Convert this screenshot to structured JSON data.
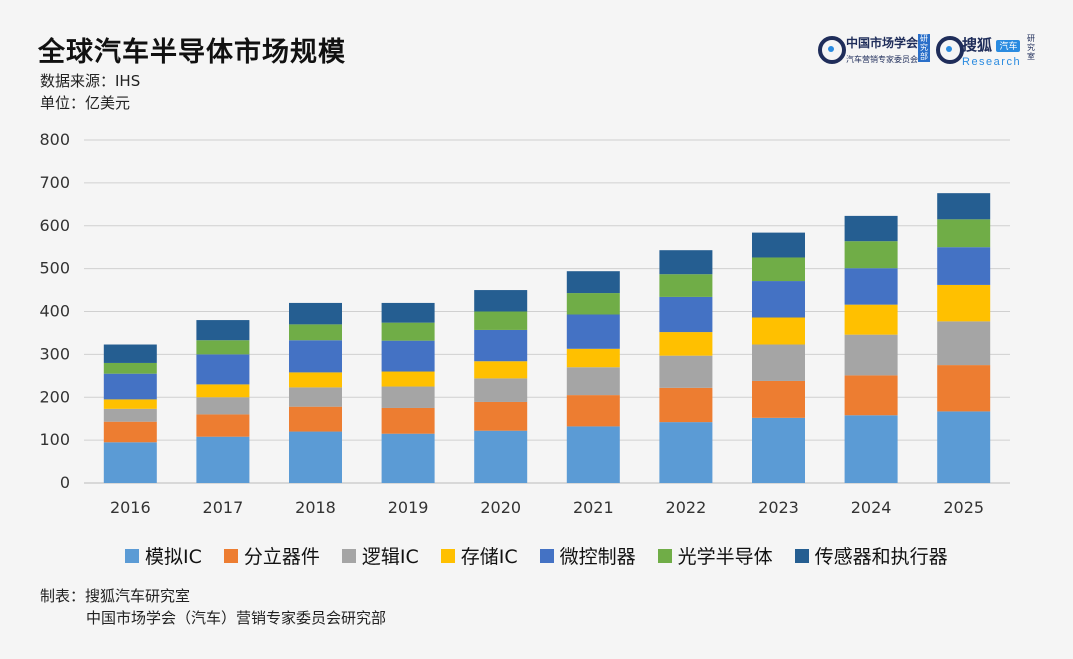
{
  "header": {
    "title": "全球汽车半导体市场规模",
    "source": "数据来源：IHS",
    "unit": "单位：亿美元"
  },
  "logos": {
    "logo1_main": "中国市场学会",
    "logo1_sub": "汽车营销专家委员会",
    "logo1_tag": "研究部",
    "logo2_main": "搜狐",
    "logo2_badge": "汽车",
    "logo2_sub": "Research",
    "logo2_tag": "研究室"
  },
  "footer": {
    "line1": "制表：搜狐汽车研究室",
    "line2": "中国市场学会（汽车）营销专家委员会研究部"
  },
  "chart_data": {
    "type": "bar",
    "stacked": true,
    "categories": [
      "2016",
      "2017",
      "2018",
      "2019",
      "2020",
      "2021",
      "2022",
      "2023",
      "2024",
      "2025"
    ],
    "ylim": [
      0,
      800
    ],
    "yticks": [
      0,
      100,
      200,
      300,
      400,
      500,
      600,
      700,
      800
    ],
    "grid": true,
    "legend_position": "bottom",
    "series": [
      {
        "name": "模拟IC",
        "color": "#5b9bd5",
        "values": [
          95,
          108,
          120,
          115,
          122,
          132,
          142,
          152,
          158,
          167
        ]
      },
      {
        "name": "分立器件",
        "color": "#ed7d31",
        "values": [
          48,
          52,
          58,
          60,
          67,
          73,
          80,
          86,
          93,
          108
        ]
      },
      {
        "name": "逻辑IC",
        "color": "#a5a5a5",
        "values": [
          30,
          40,
          45,
          50,
          55,
          65,
          75,
          85,
          95,
          102
        ]
      },
      {
        "name": "存储IC",
        "color": "#ffc000",
        "values": [
          22,
          30,
          35,
          35,
          40,
          43,
          55,
          63,
          70,
          85
        ]
      },
      {
        "name": "微控制器",
        "color": "#4472c4",
        "values": [
          60,
          70,
          75,
          72,
          73,
          80,
          82,
          85,
          85,
          88
        ]
      },
      {
        "name": "光学半导体",
        "color": "#70ad47",
        "values": [
          25,
          33,
          37,
          42,
          43,
          50,
          53,
          55,
          63,
          65
        ]
      },
      {
        "name": "传感器和执行器",
        "color": "#255e91",
        "values": [
          43,
          47,
          50,
          46,
          50,
          51,
          56,
          58,
          59,
          61
        ]
      }
    ]
  }
}
